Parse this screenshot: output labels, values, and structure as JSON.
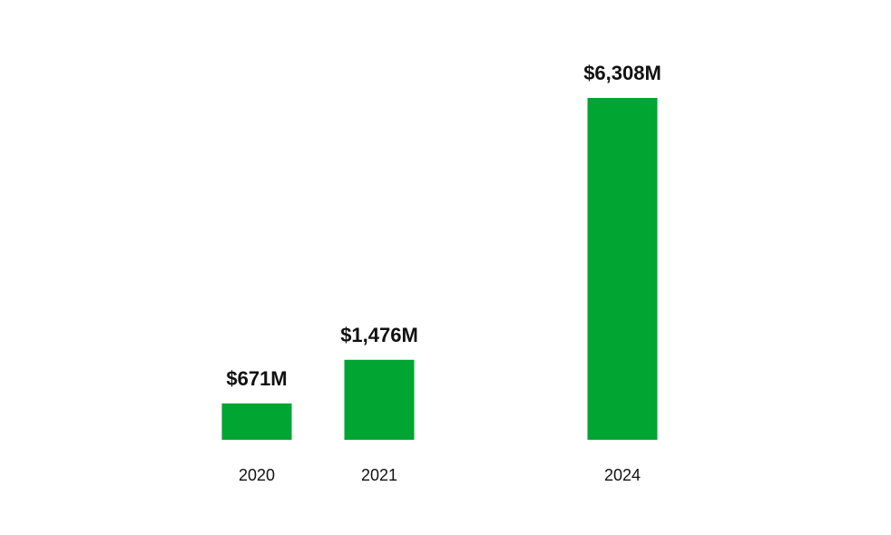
{
  "chart_data": {
    "type": "bar",
    "categories": [
      "2020",
      "2021",
      "2024"
    ],
    "values": [
      671,
      1476,
      6308
    ],
    "value_labels": [
      "$671M",
      "$1,476M",
      "$6,308M"
    ],
    "title": "",
    "xlabel": "",
    "ylabel": "",
    "ylim": [
      0,
      6308
    ],
    "grid": false,
    "legend": "none",
    "bar_color": "#00a532",
    "text_color": "#111111"
  }
}
